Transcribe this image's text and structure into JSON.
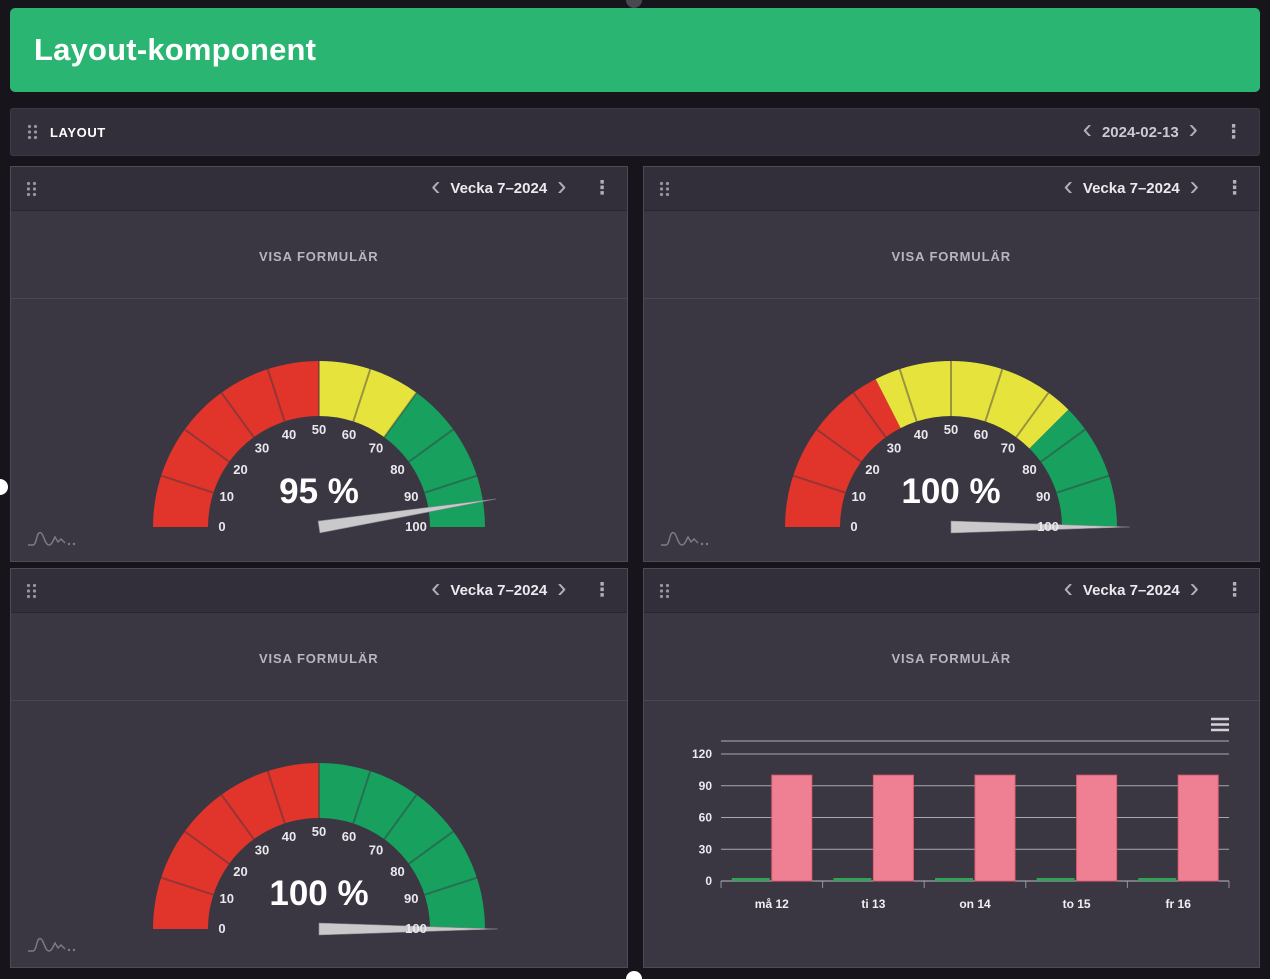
{
  "colors": {
    "accent_green": "#2ab572",
    "page_bg": "#17151b",
    "panel_bg": "#3a3742",
    "panel_header_bg": "#322f3a"
  },
  "header": {
    "title": "Layout-komponent"
  },
  "toolbar": {
    "label": "LAYOUT",
    "date": "2024-02-13"
  },
  "icons": {
    "chevron_left": "‹",
    "chevron_right": "›",
    "kebab_menu": "⋮",
    "drag_handle": "grip-dots",
    "hamburger_menu": "context-menu-lines",
    "sparkline": "mini-line-chart"
  },
  "panels": [
    {
      "week_label": "Vecka 7–2024",
      "form_button": "VISA FORMULÄR",
      "chart_data": {
        "type": "gauge",
        "min": 0,
        "max": 100,
        "tick_interval": 10,
        "value": 95,
        "value_label": "95 %",
        "bands": [
          {
            "from": 0,
            "to": 50,
            "color": "#e1342b"
          },
          {
            "from": 50,
            "to": 70,
            "color": "#e6e43c"
          },
          {
            "from": 70,
            "to": 100,
            "color": "#17a05e"
          }
        ]
      }
    },
    {
      "week_label": "Vecka 7–2024",
      "form_button": "VISA FORMULÄR",
      "chart_data": {
        "type": "gauge",
        "min": 0,
        "max": 100,
        "tick_interval": 10,
        "value": 100,
        "value_label": "100 %",
        "bands": [
          {
            "from": 0,
            "to": 35,
            "color": "#e1342b"
          },
          {
            "from": 35,
            "to": 75,
            "color": "#e6e43c"
          },
          {
            "from": 75,
            "to": 100,
            "color": "#17a05e"
          }
        ]
      }
    },
    {
      "week_label": "Vecka 7–2024",
      "form_button": "VISA FORMULÄR",
      "chart_data": {
        "type": "gauge",
        "min": 0,
        "max": 100,
        "tick_interval": 10,
        "value": 100,
        "value_label": "100 %",
        "bands": [
          {
            "from": 0,
            "to": 50,
            "color": "#e1342b"
          },
          {
            "from": 50,
            "to": 100,
            "color": "#17a05e"
          }
        ]
      }
    },
    {
      "week_label": "Vecka 7–2024",
      "form_button": "VISA FORMULÄR",
      "chart_data": {
        "type": "bar",
        "categories": [
          "må 12",
          "ti 13",
          "on 14",
          "to 15",
          "fr 16"
        ],
        "series": [
          {
            "name": "green",
            "color": "#2fa457",
            "values": [
              2,
              2,
              2,
              2,
              2
            ]
          },
          {
            "name": "pink",
            "color": "#ef8093",
            "border_color": "#e25f74",
            "values": [
              100,
              100,
              100,
              100,
              100
            ]
          }
        ],
        "ylim": [
          0,
          120
        ],
        "yticks": [
          0,
          30,
          60,
          90,
          120
        ],
        "grid": true,
        "legend": "none"
      }
    }
  ]
}
